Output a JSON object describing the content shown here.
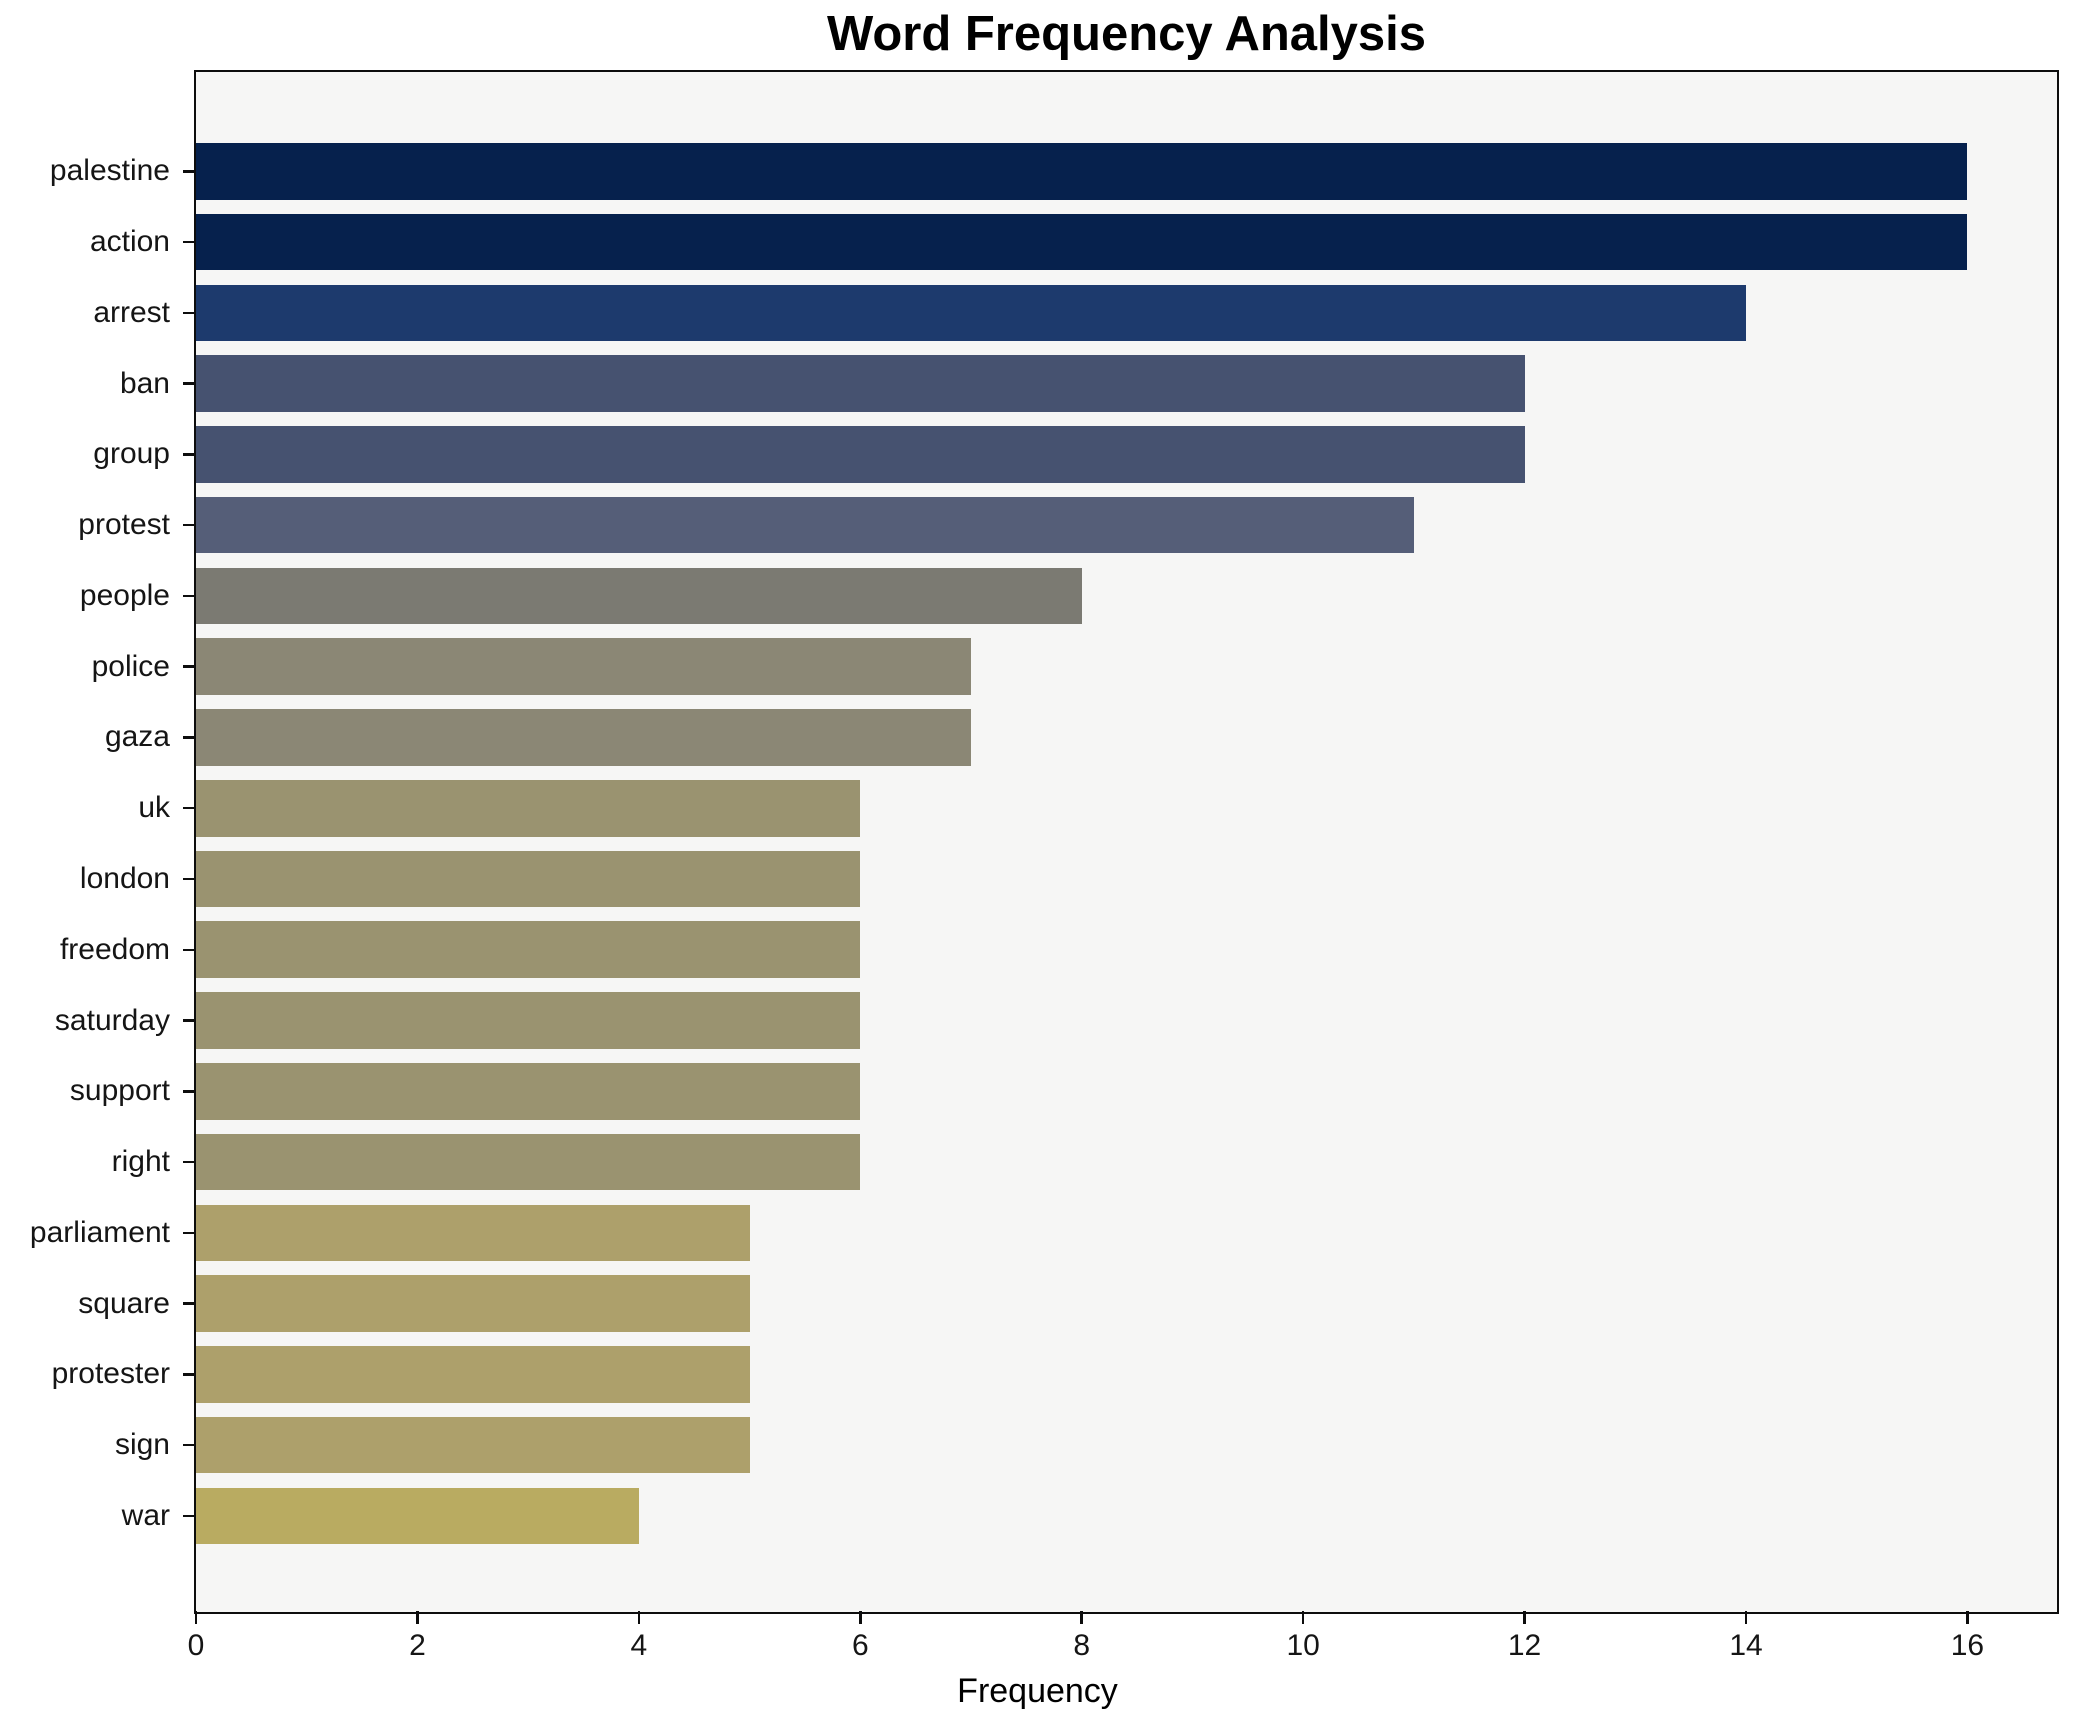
{
  "chart_data": {
    "type": "bar",
    "orientation": "horizontal",
    "title": "Word Frequency Analysis",
    "xlabel": "Frequency",
    "ylabel": "",
    "categories": [
      "palestine",
      "action",
      "arrest",
      "ban",
      "group",
      "protest",
      "people",
      "police",
      "gaza",
      "uk",
      "london",
      "freedom",
      "saturday",
      "support",
      "right",
      "parliament",
      "square",
      "protester",
      "sign",
      "war"
    ],
    "values": [
      16,
      16,
      14,
      12,
      12,
      11,
      8,
      7,
      7,
      6,
      6,
      6,
      6,
      6,
      6,
      5,
      5,
      5,
      5,
      4
    ],
    "bar_colors": [
      "#06214d",
      "#06214d",
      "#1d3a6d",
      "#465270",
      "#465270",
      "#555e78",
      "#7b7a72",
      "#8b8775",
      "#8b8775",
      "#9a9370",
      "#9a9370",
      "#9a9370",
      "#9a9370",
      "#9a9370",
      "#9a9370",
      "#ada06b",
      "#ada06b",
      "#ada06b",
      "#ada06b",
      "#b9ab61"
    ],
    "xlim": [
      0,
      16.8
    ],
    "x_ticks": [
      0,
      2,
      4,
      6,
      8,
      10,
      12,
      14,
      16
    ],
    "grid": false,
    "legend_position": "none",
    "plot_background": "#f6f6f5",
    "frame_color": "#0d0d0d"
  }
}
